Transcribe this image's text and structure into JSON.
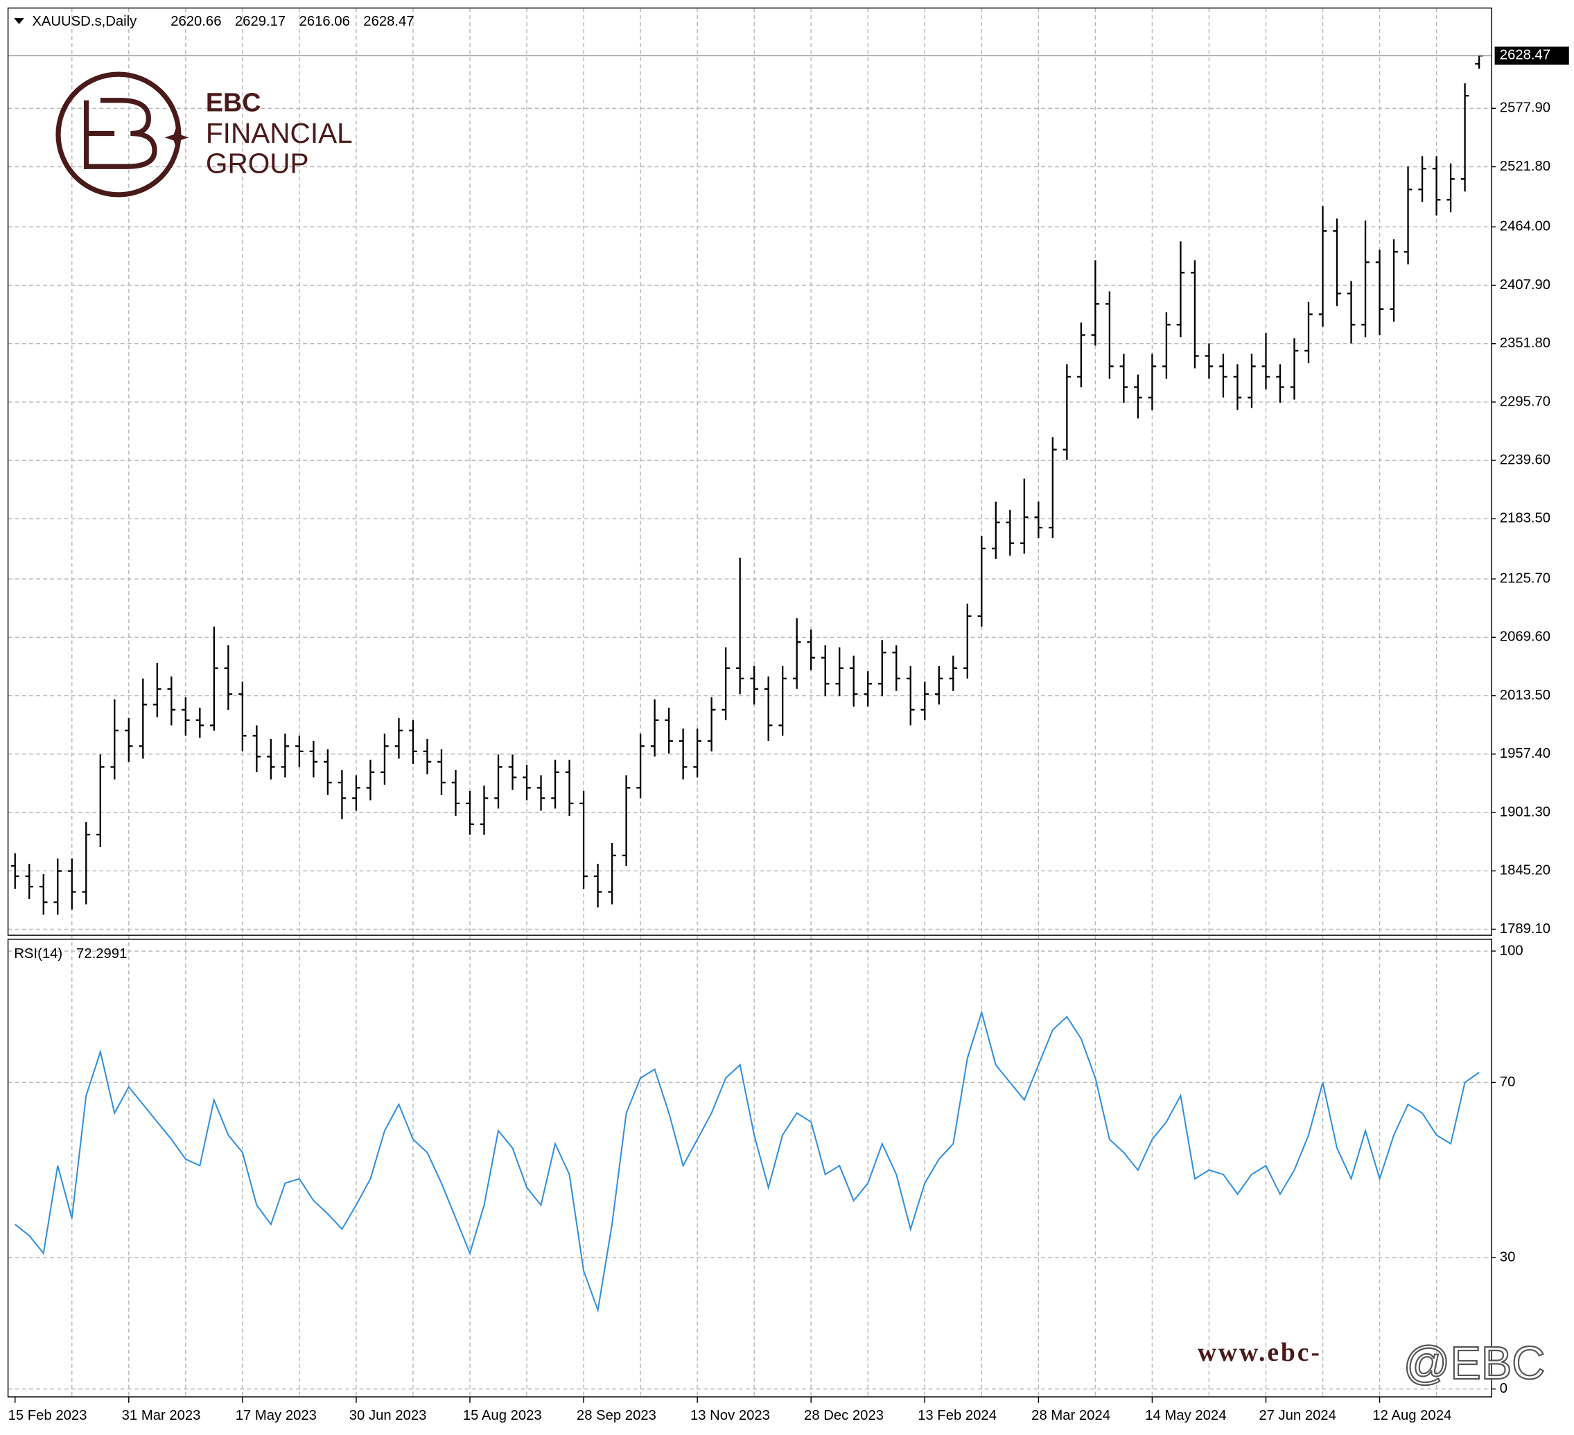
{
  "chart_data": [
    {
      "type": "ohlc",
      "title": "XAUUSD.s,Daily",
      "color": "#000000",
      "open": [
        1850,
        1840,
        1830,
        1815,
        1845,
        1825,
        1880,
        1945,
        1980,
        1965,
        2005,
        2020,
        2000,
        1990,
        1985,
        2040,
        2015,
        1975,
        1955,
        1945,
        1965,
        1960,
        1950,
        1930,
        1915,
        1925,
        1940,
        1965,
        1980,
        1960,
        1950,
        1930,
        1910,
        1890,
        1915,
        1945,
        1935,
        1925,
        1915,
        1940,
        1910,
        1840,
        1825,
        1860,
        1925,
        1965,
        1990,
        1970,
        1945,
        1970,
        2000,
        2040,
        2030,
        2020,
        1985,
        2030,
        2065,
        2050,
        2025,
        2040,
        2015,
        2025,
        2055,
        2030,
        2000,
        2015,
        2030,
        2040,
        2090,
        2155,
        2180,
        2160,
        2185,
        2175,
        2250,
        2320,
        2360,
        2390,
        2330,
        2310,
        2300,
        2330,
        2370,
        2420,
        2340,
        2330,
        2320,
        2300,
        2330,
        2320,
        2310,
        2345,
        2380,
        2460,
        2400,
        2370,
        2430,
        2385,
        2440,
        2500,
        2520,
        2490,
        2510,
        2620.66
      ],
      "high": [
        1862,
        1852,
        1842,
        1857,
        1857,
        1892,
        1957,
        2010,
        1992,
        2030,
        2045,
        2032,
        2012,
        2002,
        2080,
        2062,
        2027,
        1985,
        1972,
        1977,
        1975,
        1970,
        1962,
        1942,
        1937,
        1952,
        1977,
        1992,
        1990,
        1972,
        1962,
        1942,
        1922,
        1927,
        1957,
        1957,
        1947,
        1937,
        1952,
        1952,
        1922,
        1852,
        1872,
        1937,
        1977,
        2010,
        2002,
        1982,
        1982,
        2012,
        2060,
        2146,
        2042,
        2032,
        2042,
        2088,
        2077,
        2062,
        2060,
        2052,
        2037,
        2067,
        2062,
        2042,
        2027,
        2042,
        2052,
        2102,
        2167,
        2200,
        2192,
        2222,
        2200,
        2262,
        2332,
        2372,
        2432,
        2402,
        2342,
        2322,
        2342,
        2382,
        2450,
        2432,
        2352,
        2342,
        2332,
        2342,
        2362,
        2332,
        2357,
        2392,
        2484,
        2472,
        2412,
        2470,
        2442,
        2452,
        2522,
        2532,
        2532,
        2525,
        2602,
        2629.17
      ],
      "low": [
        1828,
        1818,
        1803,
        1803,
        1808,
        1813,
        1868,
        1933,
        1950,
        1953,
        1993,
        1985,
        1975,
        1973,
        1980,
        2000,
        1960,
        1940,
        1933,
        1935,
        1945,
        1935,
        1918,
        1895,
        1903,
        1913,
        1928,
        1953,
        1948,
        1938,
        1918,
        1898,
        1880,
        1880,
        1905,
        1923,
        1913,
        1903,
        1905,
        1898,
        1828,
        1810,
        1813,
        1850,
        1915,
        1955,
        1958,
        1933,
        1935,
        1960,
        1990,
        2015,
        2005,
        1970,
        1975,
        2020,
        2038,
        2013,
        2013,
        2003,
        2003,
        2013,
        2018,
        1985,
        1990,
        2005,
        2018,
        2030,
        2080,
        2145,
        2148,
        2150,
        2165,
        2165,
        2240,
        2310,
        2350,
        2318,
        2295,
        2280,
        2288,
        2318,
        2358,
        2328,
        2318,
        2300,
        2288,
        2290,
        2308,
        2295,
        2298,
        2333,
        2368,
        2388,
        2352,
        2358,
        2360,
        2373,
        2428,
        2488,
        2475,
        2478,
        2498,
        2616.06
      ],
      "close": [
        1840,
        1830,
        1815,
        1845,
        1825,
        1880,
        1945,
        1980,
        1965,
        2005,
        2020,
        2000,
        1990,
        1985,
        2040,
        2015,
        1975,
        1955,
        1945,
        1965,
        1960,
        1950,
        1930,
        1915,
        1925,
        1940,
        1965,
        1980,
        1960,
        1950,
        1930,
        1910,
        1890,
        1915,
        1945,
        1935,
        1925,
        1915,
        1940,
        1910,
        1840,
        1825,
        1860,
        1925,
        1965,
        1990,
        1970,
        1945,
        1970,
        2000,
        2040,
        2030,
        2020,
        1985,
        2030,
        2065,
        2050,
        2025,
        2040,
        2015,
        2025,
        2055,
        2030,
        2000,
        2015,
        2030,
        2040,
        2090,
        2155,
        2180,
        2160,
        2185,
        2175,
        2250,
        2320,
        2360,
        2390,
        2330,
        2310,
        2300,
        2330,
        2370,
        2420,
        2340,
        2330,
        2320,
        2300,
        2330,
        2320,
        2310,
        2345,
        2380,
        2460,
        2400,
        2370,
        2430,
        2385,
        2440,
        2500,
        2520,
        2490,
        2510,
        2590,
        2628.47
      ],
      "ylim": [
        1783.3,
        2674.3
      ],
      "yticks": [
        {
          "value": 1789.1,
          "label": "1789.10"
        },
        {
          "value": 1845.2,
          "label": "1845.20"
        },
        {
          "value": 1901.3,
          "label": "1901.30"
        },
        {
          "value": 1957.4,
          "label": "1957.40"
        },
        {
          "value": 2013.5,
          "label": "2013.50"
        },
        {
          "value": 2069.6,
          "label": "2069.60"
        },
        {
          "value": 2125.7,
          "label": "2125.70"
        },
        {
          "value": 2183.5,
          "label": "2183.50"
        },
        {
          "value": 2239.6,
          "label": "2239.60"
        },
        {
          "value": 2295.7,
          "label": "2295.70"
        },
        {
          "value": 2351.8,
          "label": "2351.80"
        },
        {
          "value": 2407.9,
          "label": "2407.90"
        },
        {
          "value": 2464,
          "label": "2464.00"
        },
        {
          "value": 2521.8,
          "label": "2521.80"
        },
        {
          "value": 2577.9,
          "label": "2577.90"
        }
      ],
      "grid": true
    },
    {
      "type": "line",
      "title": "RSI(14)",
      "color": "#2f8fe0",
      "categories": [
        "15 Feb 2023",
        null,
        null,
        null,
        null,
        null,
        null,
        null,
        "31 Mar 2023",
        null,
        null,
        null,
        null,
        null,
        null,
        null,
        "17 May 2023",
        null,
        null,
        null,
        null,
        null,
        null,
        null,
        "30 Jun 2023",
        null,
        null,
        null,
        null,
        null,
        null,
        null,
        "15 Aug 2023",
        null,
        null,
        null,
        null,
        null,
        null,
        null,
        "28 Sep 2023",
        null,
        null,
        null,
        null,
        null,
        null,
        null,
        "13 Nov 2023",
        null,
        null,
        null,
        null,
        null,
        null,
        null,
        "28 Dec 2023",
        null,
        null,
        null,
        null,
        null,
        null,
        null,
        "13 Feb 2024",
        null,
        null,
        null,
        null,
        null,
        null,
        null,
        "28 Mar 2024",
        null,
        null,
        null,
        null,
        null,
        null,
        null,
        "14 May 2024",
        null,
        null,
        null,
        null,
        null,
        null,
        null,
        "27 Jun 2024",
        null,
        null,
        null,
        null,
        null,
        null,
        null,
        "12 Aug 2024",
        null,
        null,
        null,
        null,
        null,
        null,
        null
      ],
      "values": [
        37.6,
        35,
        31,
        51,
        39,
        67,
        77,
        63,
        69,
        65,
        61,
        57,
        52.5,
        51,
        66,
        58,
        54,
        42,
        37.6,
        47,
        48,
        43,
        40,
        36.5,
        42,
        48,
        59,
        65,
        57,
        54,
        47,
        39,
        31,
        42,
        59,
        55,
        46,
        42,
        56,
        49,
        27,
        18,
        37.6,
        63,
        71,
        73,
        63,
        51,
        57,
        63,
        71,
        74,
        58,
        46,
        58,
        63,
        61,
        49,
        51,
        43,
        47,
        56,
        49,
        36.5,
        47,
        52.5,
        56,
        75.5,
        86,
        74,
        70,
        66,
        74,
        82,
        85,
        80,
        71,
        57,
        54,
        50,
        57,
        61,
        67,
        48,
        50,
        49,
        44.5,
        49,
        51,
        44.5,
        50,
        58,
        70,
        55,
        48,
        59,
        48,
        58,
        65,
        63,
        58,
        56,
        70,
        72.2991
      ],
      "ylim": [
        -1.8,
        102.7
      ],
      "yticks": [
        0,
        30,
        70,
        100
      ],
      "grid": true
    }
  ],
  "logo": {
    "line1": "EBC",
    "line2": "FINANCIAL",
    "line3": "GROUP"
  },
  "watermark": {
    "url": "www.ebc-",
    "handle": "@EBC"
  }
}
